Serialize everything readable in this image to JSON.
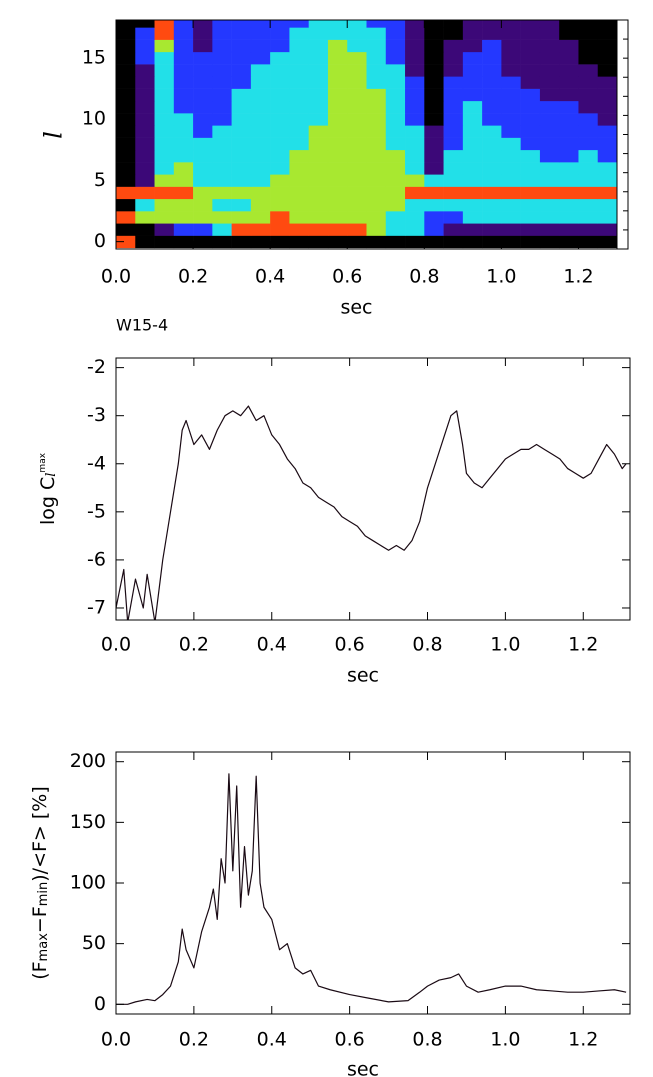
{
  "chart_data": [
    {
      "type": "heatmap",
      "xlabel": "sec",
      "ylabel": "l",
      "bins": [
        0,
        0.05,
        0.1,
        0.15,
        0.2,
        0.25,
        0.3,
        0.35,
        0.4,
        0.45,
        0.5,
        0.55,
        0.6,
        0.65,
        0.7,
        0.75,
        0.8,
        0.85,
        0.9,
        0.95,
        1,
        1.05,
        1.1,
        1.15,
        1.2,
        1.25,
        1.3
      ],
      "l": [
        0,
        1,
        2,
        3,
        4,
        5,
        6,
        7,
        8,
        9,
        10,
        11,
        12,
        13,
        14,
        15,
        16,
        17,
        18
      ],
      "z": [
        [
          5,
          0,
          0,
          0,
          0,
          0,
          0,
          0,
          0,
          0,
          0,
          0,
          0,
          0,
          0,
          0,
          0,
          0,
          0,
          0,
          0,
          0,
          0,
          0,
          0,
          0
        ],
        [
          0,
          0,
          1,
          2,
          2,
          3,
          5,
          5,
          5,
          5,
          5,
          5,
          5,
          4,
          3,
          3,
          2,
          1,
          1,
          1,
          1,
          1,
          1,
          1,
          1,
          1
        ],
        [
          5,
          4,
          4,
          4,
          4,
          4,
          4,
          4,
          5,
          4,
          4,
          4,
          4,
          4,
          3,
          3,
          2,
          2,
          3,
          3,
          3,
          3,
          3,
          3,
          3,
          3
        ],
        [
          0,
          3,
          4,
          4,
          4,
          3,
          3,
          4,
          4,
          4,
          4,
          4,
          4,
          4,
          4,
          3,
          3,
          3,
          3,
          3,
          3,
          3,
          3,
          3,
          3,
          3
        ],
        [
          5,
          5,
          5,
          5,
          4,
          4,
          4,
          4,
          4,
          4,
          4,
          4,
          4,
          4,
          4,
          5,
          5,
          5,
          5,
          5,
          5,
          5,
          5,
          5,
          5,
          5
        ],
        [
          0,
          1,
          4,
          4,
          3,
          3,
          3,
          3,
          4,
          4,
          4,
          4,
          4,
          4,
          4,
          4,
          3,
          3,
          3,
          3,
          3,
          3,
          3,
          3,
          3,
          3
        ],
        [
          0,
          1,
          3,
          4,
          3,
          3,
          3,
          3,
          3,
          4,
          4,
          4,
          4,
          4,
          4,
          3,
          1,
          3,
          3,
          3,
          3,
          3,
          3,
          3,
          3,
          3
        ],
        [
          0,
          1,
          3,
          3,
          3,
          3,
          3,
          3,
          3,
          4,
          4,
          4,
          4,
          4,
          4,
          3,
          1,
          3,
          3,
          3,
          3,
          3,
          2,
          2,
          3,
          2
        ],
        [
          0,
          1,
          3,
          3,
          3,
          3,
          3,
          3,
          3,
          3,
          4,
          4,
          4,
          4,
          3,
          3,
          1,
          2,
          3,
          3,
          3,
          2,
          2,
          2,
          2,
          2
        ],
        [
          0,
          1,
          3,
          3,
          2,
          3,
          3,
          3,
          3,
          3,
          4,
          4,
          4,
          4,
          3,
          3,
          1,
          2,
          3,
          3,
          2,
          2,
          2,
          2,
          2,
          2
        ],
        [
          0,
          1,
          3,
          3,
          2,
          2,
          3,
          3,
          3,
          3,
          3,
          4,
          4,
          4,
          3,
          2,
          0,
          2,
          3,
          2,
          2,
          2,
          2,
          2,
          2,
          1
        ],
        [
          0,
          1,
          3,
          2,
          2,
          2,
          3,
          3,
          3,
          3,
          3,
          4,
          4,
          4,
          3,
          2,
          0,
          2,
          3,
          2,
          2,
          2,
          2,
          2,
          1,
          1
        ],
        [
          0,
          1,
          3,
          2,
          2,
          2,
          3,
          3,
          3,
          3,
          3,
          4,
          4,
          4,
          3,
          2,
          0,
          2,
          2,
          2,
          2,
          2,
          1,
          1,
          1,
          1
        ],
        [
          0,
          1,
          3,
          2,
          2,
          2,
          2,
          3,
          3,
          3,
          3,
          4,
          4,
          3,
          3,
          2,
          0,
          2,
          2,
          2,
          2,
          1,
          1,
          1,
          1,
          1
        ],
        [
          0,
          1,
          3,
          2,
          2,
          2,
          2,
          3,
          3,
          3,
          3,
          4,
          4,
          3,
          3,
          1,
          0,
          1,
          2,
          2,
          1,
          1,
          1,
          1,
          1,
          0
        ],
        [
          0,
          2,
          3,
          2,
          2,
          2,
          2,
          2,
          3,
          3,
          3,
          4,
          4,
          3,
          2,
          1,
          0,
          1,
          2,
          2,
          1,
          1,
          1,
          1,
          0,
          0
        ],
        [
          0,
          2,
          4,
          2,
          1,
          2,
          2,
          2,
          2,
          3,
          3,
          4,
          3,
          3,
          2,
          1,
          0,
          1,
          1,
          2,
          1,
          1,
          1,
          1,
          0,
          0
        ],
        [
          0,
          2,
          5,
          2,
          1,
          2,
          2,
          2,
          2,
          3,
          3,
          3,
          3,
          3,
          2,
          1,
          0,
          0,
          1,
          1,
          1,
          1,
          1,
          0,
          0,
          0
        ],
        [
          0,
          0,
          5,
          2,
          1,
          2,
          2,
          2,
          2,
          2,
          3,
          3,
          3,
          2,
          2,
          1,
          0,
          0,
          1,
          1,
          1,
          1,
          1,
          0,
          0,
          0
        ]
      ],
      "colors": [
        "#000000",
        "#3c0878",
        "#2438ff",
        "#22e0e8",
        "#a8e830",
        "#ff4a10"
      ],
      "xlim": [
        0,
        1.3
      ],
      "ylim": [
        -0.6,
        18.1
      ],
      "xticks": [
        {
          "value": 0,
          "label": "0.0"
        },
        {
          "value": 0.2,
          "label": "0.2"
        },
        {
          "value": 0.4,
          "label": "0.4"
        },
        {
          "value": 0.6,
          "label": "0.6"
        },
        {
          "value": 0.8,
          "label": "0.8"
        },
        {
          "value": 1,
          "label": "1.0"
        },
        {
          "value": 1.2,
          "label": "1.2"
        }
      ],
      "yticks": [
        0,
        5,
        10,
        15
      ]
    },
    {
      "type": "line",
      "title": "W15-4",
      "xlabel": "sec",
      "ylabel": [
        "log C",
        "l",
        "max"
      ],
      "color": "#1a0a14",
      "x": [
        0,
        0.02,
        0.03,
        0.05,
        0.07,
        0.08,
        0.1,
        0.12,
        0.14,
        0.16,
        0.17,
        0.18,
        0.2,
        0.22,
        0.24,
        0.26,
        0.28,
        0.3,
        0.32,
        0.34,
        0.36,
        0.38,
        0.4,
        0.42,
        0.44,
        0.46,
        0.48,
        0.5,
        0.52,
        0.54,
        0.56,
        0.58,
        0.6,
        0.62,
        0.64,
        0.66,
        0.68,
        0.7,
        0.72,
        0.74,
        0.76,
        0.78,
        0.8,
        0.82,
        0.84,
        0.86,
        0.875,
        0.89,
        0.9,
        0.92,
        0.94,
        0.96,
        0.98,
        1,
        1.02,
        1.04,
        1.06,
        1.08,
        1.1,
        1.12,
        1.14,
        1.16,
        1.18,
        1.2,
        1.22,
        1.24,
        1.26,
        1.28,
        1.3,
        1.31
      ],
      "values": [
        -7,
        -6.2,
        -7.3,
        -6.4,
        -7,
        -6.3,
        -7.3,
        -6,
        -5,
        -4,
        -3.3,
        -3.1,
        -3.6,
        -3.4,
        -3.7,
        -3.3,
        -3,
        -2.9,
        -3,
        -2.8,
        -3.1,
        -3,
        -3.4,
        -3.6,
        -3.9,
        -4.1,
        -4.4,
        -4.5,
        -4.7,
        -4.8,
        -4.9,
        -5.1,
        -5.2,
        -5.3,
        -5.5,
        -5.6,
        -5.7,
        -5.8,
        -5.7,
        -5.8,
        -5.6,
        -5.2,
        -4.5,
        -4,
        -3.5,
        -3,
        -2.9,
        -3.6,
        -4.2,
        -4.4,
        -4.5,
        -4.3,
        -4.1,
        -3.9,
        -3.8,
        -3.7,
        -3.7,
        -3.6,
        -3.7,
        -3.8,
        -3.9,
        -4.1,
        -4.2,
        -4.3,
        -4.2,
        -3.9,
        -3.6,
        -3.8,
        -4.1,
        -4
      ],
      "xlim": [
        0,
        1.32
      ],
      "ylim": [
        -7.25,
        -1.8
      ],
      "xticks": [
        {
          "value": 0,
          "label": "0.0"
        },
        {
          "value": 0.2,
          "label": "0.2"
        },
        {
          "value": 0.4,
          "label": "0.4"
        },
        {
          "value": 0.6,
          "label": "0.6"
        },
        {
          "value": 0.8,
          "label": "0.8"
        },
        {
          "value": 1,
          "label": "1.0"
        },
        {
          "value": 1.2,
          "label": "1.2"
        }
      ],
      "yticks": [
        -2,
        -3,
        -4,
        -5,
        -6,
        -7
      ]
    },
    {
      "type": "line",
      "xlabel": "sec",
      "ylabel": [
        "(F",
        "max",
        "−F",
        "min",
        ")/<F> [%]"
      ],
      "color": "#1a0a14",
      "x": [
        0,
        0.03,
        0.05,
        0.08,
        0.1,
        0.12,
        0.14,
        0.16,
        0.17,
        0.18,
        0.2,
        0.22,
        0.24,
        0.25,
        0.26,
        0.27,
        0.28,
        0.29,
        0.3,
        0.31,
        0.32,
        0.33,
        0.34,
        0.35,
        0.36,
        0.37,
        0.38,
        0.4,
        0.42,
        0.44,
        0.46,
        0.48,
        0.5,
        0.52,
        0.55,
        0.6,
        0.65,
        0.7,
        0.75,
        0.78,
        0.8,
        0.83,
        0.86,
        0.88,
        0.9,
        0.93,
        0.96,
        1,
        1.04,
        1.08,
        1.12,
        1.16,
        1.2,
        1.24,
        1.28,
        1.31
      ],
      "values": [
        0,
        0,
        2,
        4,
        3,
        8,
        15,
        35,
        62,
        45,
        30,
        60,
        80,
        95,
        70,
        120,
        100,
        190,
        110,
        180,
        80,
        130,
        90,
        110,
        188,
        100,
        80,
        70,
        45,
        50,
        30,
        25,
        28,
        15,
        12,
        8,
        5,
        2,
        3,
        10,
        15,
        20,
        22,
        25,
        15,
        10,
        12,
        15,
        15,
        12,
        11,
        10,
        10,
        11,
        12,
        10
      ],
      "xlim": [
        0,
        1.32
      ],
      "ylim": [
        -8,
        208
      ],
      "xticks": [
        {
          "value": 0,
          "label": "0.0"
        },
        {
          "value": 0.2,
          "label": "0.2"
        },
        {
          "value": 0.4,
          "label": "0.4"
        },
        {
          "value": 0.6,
          "label": "0.6"
        },
        {
          "value": 0.8,
          "label": "0.8"
        },
        {
          "value": 1,
          "label": "1.0"
        },
        {
          "value": 1.2,
          "label": "1.2"
        }
      ],
      "yticks": [
        0,
        50,
        100,
        150,
        200
      ]
    }
  ]
}
